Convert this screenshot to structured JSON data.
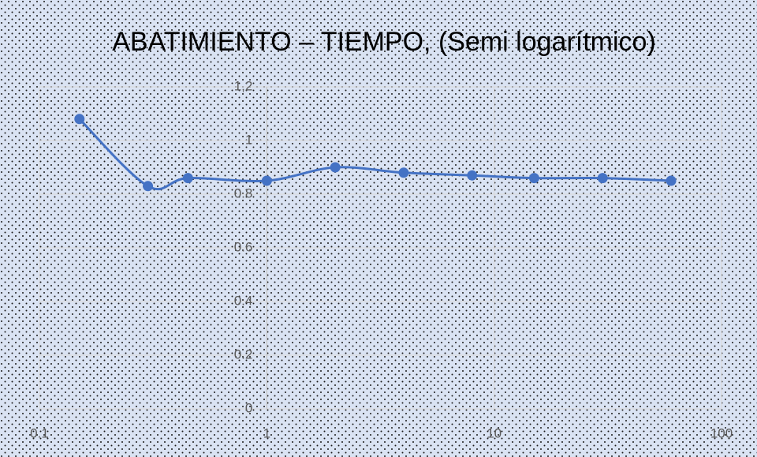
{
  "chart_data": {
    "type": "line",
    "title": "ABATIMIENTO – TIEMPO, (Semi logarítmico)",
    "x": [
      0.15,
      0.3,
      0.45,
      1,
      2,
      4,
      8,
      15,
      30,
      60
    ],
    "series": [
      {
        "name": null,
        "color": "#4472c4",
        "values": [
          1.08,
          0.83,
          0.86,
          0.85,
          0.9,
          0.88,
          0.87,
          0.86,
          0.86,
          0.85
        ]
      }
    ],
    "xlim": [
      0.1,
      100
    ],
    "xticks": [
      0.1,
      1,
      10,
      100
    ],
    "xscale": "log",
    "ylim": [
      0,
      1.2
    ],
    "yticks": [
      0,
      0.2,
      0.4,
      0.6,
      0.8,
      1,
      {
        "value": 1.2,
        "label": "1,2"
      }
    ],
    "grid": true,
    "smooth": true
  }
}
